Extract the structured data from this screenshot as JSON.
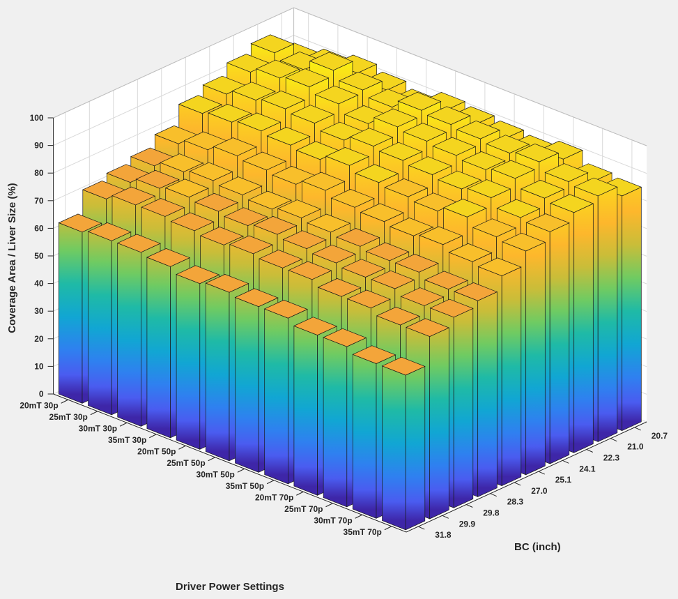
{
  "chart_data": {
    "type": "bar3d",
    "title": "",
    "xlabel": "Driver Power Settings",
    "ylabel": "BC (inch)",
    "zlabel": "Coverage Area / Liver Size (%)",
    "zlim": [
      0,
      100
    ],
    "zticks": [
      "0",
      "10",
      "20",
      "30",
      "40",
      "50",
      "60",
      "70",
      "80",
      "90",
      "100"
    ],
    "grid": true,
    "colormap": "parula",
    "settings": [
      "20mT 30p",
      "25mT 30p",
      "30mT 30p",
      "35mT 30p",
      "20mT 50p",
      "25mT 50p",
      "30mT 50p",
      "35mT 50p",
      "20mT 70p",
      "25mT 70p",
      "30mT 70p",
      "35mT 70p"
    ],
    "bc": [
      "31.8",
      "29.9",
      "29.8",
      "28.3",
      "27.0",
      "25.1",
      "24.1",
      "22.3",
      "21.0",
      "20.7"
    ],
    "values": [
      [
        62,
        70,
        72,
        74,
        78,
        85,
        88,
        92,
        95,
        88
      ],
      [
        63,
        72,
        74,
        76,
        80,
        86,
        90,
        94,
        93,
        90
      ],
      [
        63,
        72,
        75,
        77,
        82,
        87,
        91,
        95,
        97,
        92
      ],
      [
        62,
        71,
        74,
        76,
        81,
        86,
        90,
        93,
        94,
        90
      ],
      [
        60,
        70,
        73,
        75,
        80,
        85,
        88,
        90,
        92,
        88
      ],
      [
        61,
        71,
        74,
        76,
        82,
        87,
        90,
        93,
        95,
        91
      ],
      [
        60,
        70,
        73,
        75,
        80,
        85,
        89,
        92,
        94,
        90
      ],
      [
        60,
        70,
        72,
        74,
        79,
        84,
        88,
        91,
        93,
        89
      ],
      [
        58,
        68,
        71,
        73,
        78,
        83,
        87,
        90,
        92,
        88
      ],
      [
        58,
        68,
        71,
        73,
        79,
        85,
        88,
        91,
        93,
        90
      ],
      [
        56,
        66,
        69,
        71,
        77,
        82,
        85,
        88,
        90,
        86
      ],
      [
        56,
        66,
        69,
        71,
        76,
        81,
        84,
        87,
        89,
        85
      ]
    ]
  }
}
